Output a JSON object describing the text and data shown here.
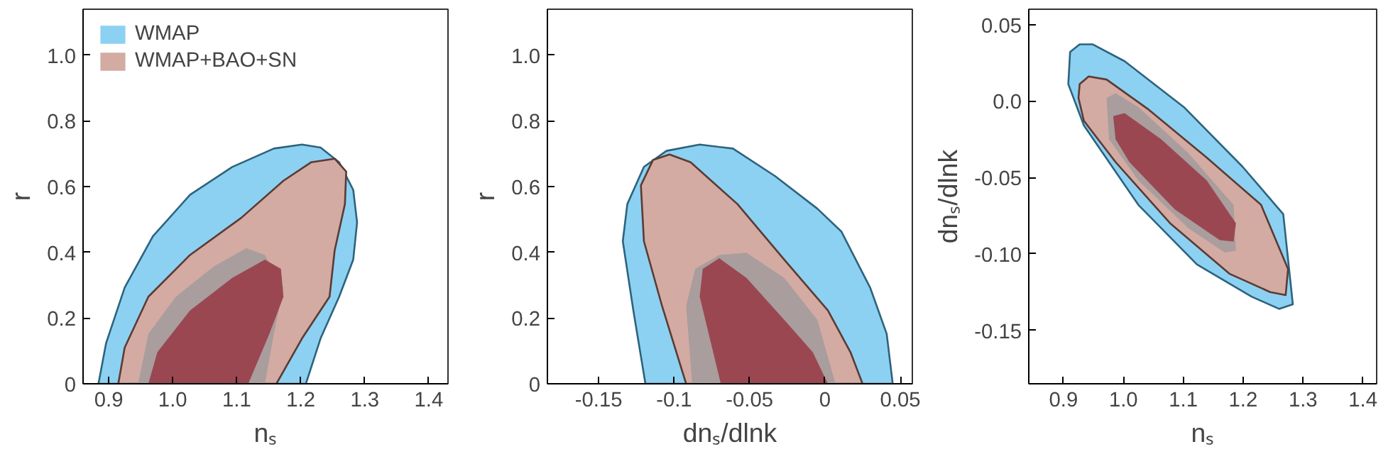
{
  "chart_data": [
    {
      "type": "area",
      "xlabel": "nₛ",
      "ylabel": "r",
      "xlim": [
        0.86,
        1.43
      ],
      "ylim": [
        0,
        1.14
      ],
      "xticks": [
        0.9,
        {
          "value": 1.0,
          "label": "1.0"
        },
        1.1,
        1.2,
        1.3,
        1.4
      ],
      "yticks": [
        0,
        0.2,
        0.4,
        0.6,
        0.8,
        {
          "value": 1.0,
          "label": "1.0"
        }
      ],
      "legend": "top left",
      "grid": false,
      "series": [
        {
          "name": "WMAP",
          "color": "#8dd1f2",
          "line_style": "solid",
          "x": [
            0.884,
            0.896,
            0.925,
            0.969,
            1.027,
            1.093,
            1.158,
            1.202,
            1.231,
            1.26,
            1.282,
            1.288,
            1.282,
            1.26,
            1.231,
            1.208
          ],
          "values": [
            0,
            0.124,
            0.293,
            0.449,
            0.575,
            0.66,
            0.716,
            0.728,
            0.719,
            0.674,
            0.59,
            0.491,
            0.378,
            0.265,
            0.138,
            0
          ]
        },
        {
          "name": "WMAP+BAO+SN",
          "color": "#d3aba2",
          "line_style": "solid",
          "x": [
            0.915,
            0.925,
            0.962,
            1.027,
            1.107,
            1.173,
            1.216,
            1.253,
            1.271,
            1.269,
            1.253,
            1.245,
            1.202,
            1.162
          ],
          "values": [
            0,
            0.11,
            0.265,
            0.392,
            0.505,
            0.618,
            0.674,
            0.685,
            0.646,
            0.547,
            0.406,
            0.265,
            0.138,
            0
          ]
        },
        {
          "color": "#a99d9d",
          "x": [
            0.946,
            0.962,
            1.005,
            1.064,
            1.115,
            1.144,
            1.173,
            1.158,
            1.144
          ],
          "values": [
            0,
            0.152,
            0.265,
            0.357,
            0.413,
            0.392,
            0.293,
            0.152,
            0
          ]
        },
        {
          "color": "#9a4752",
          "x": [
            0.962,
            0.976,
            1.027,
            1.093,
            1.144,
            1.169,
            1.173,
            1.151,
            1.118
          ],
          "values": [
            0,
            0.096,
            0.223,
            0.322,
            0.378,
            0.35,
            0.265,
            0.152,
            0
          ]
        }
      ]
    },
    {
      "type": "area",
      "xlabel": "dnₛ/dlnk",
      "ylabel": "r",
      "xlim": [
        -0.184,
        0.058
      ],
      "ylim": [
        0,
        1.14
      ],
      "xticks": [
        -0.15,
        -0.1,
        -0.05,
        0,
        0.05
      ],
      "yticks": [
        0,
        0.2,
        0.4,
        0.6,
        0.8,
        {
          "value": 1.0,
          "label": "1.0"
        }
      ],
      "grid": false,
      "series": [
        {
          "color": "#8dd1f2",
          "line_style": "solid",
          "x": [
            -0.119,
            -0.127,
            -0.134,
            -0.131,
            -0.12,
            -0.105,
            -0.083,
            -0.061,
            -0.033,
            -0.005,
            0.011,
            0.03,
            0.041,
            0.045
          ],
          "values": [
            0,
            0.223,
            0.434,
            0.547,
            0.66,
            0.709,
            0.728,
            0.716,
            0.632,
            0.533,
            0.463,
            0.293,
            0.152,
            0
          ]
        },
        {
          "color": "#d3aba2",
          "line_style": "solid",
          "x": [
            -0.092,
            -0.108,
            -0.12,
            -0.122,
            -0.114,
            -0.103,
            -0.089,
            -0.058,
            -0.027,
            0.002,
            0.017,
            0.025
          ],
          "values": [
            0,
            0.237,
            0.434,
            0.604,
            0.681,
            0.698,
            0.674,
            0.547,
            0.378,
            0.223,
            0.096,
            0
          ]
        },
        {
          "color": "#a99d9d",
          "x": [
            -0.088,
            -0.092,
            -0.086,
            -0.07,
            -0.052,
            -0.027,
            -0.005,
            0.007
          ],
          "values": [
            0,
            0.237,
            0.35,
            0.392,
            0.399,
            0.322,
            0.195,
            0
          ]
        },
        {
          "color": "#9a4752",
          "x": [
            -0.069,
            -0.083,
            -0.081,
            -0.07,
            -0.052,
            -0.027,
            -0.008,
            0.002
          ],
          "values": [
            0,
            0.265,
            0.35,
            0.382,
            0.322,
            0.195,
            0.096,
            0
          ]
        }
      ]
    },
    {
      "type": "area",
      "xlabel": "nₛ",
      "ylabel": "dnₛ/dlnk",
      "xlim": [
        0.842,
        1.423
      ],
      "ylim": [
        -0.185,
        0.06
      ],
      "xticks": [
        0.9,
        {
          "value": 1.0,
          "label": "1.0"
        },
        1.1,
        1.2,
        1.3,
        1.4
      ],
      "yticks": [
        0.05,
        {
          "value": 0,
          "label": "0.0"
        },
        -0.05,
        {
          "value": -0.1,
          "label": "-0.10"
        },
        -0.15
      ],
      "grid": false,
      "series": [
        {
          "color": "#8dd1f2",
          "line_style": "solid",
          "x": [
            0.911,
            0.927,
            0.949,
            1.002,
            1.101,
            1.199,
            1.267,
            1.283,
            1.26,
            1.214,
            1.123,
            1.025,
            0.934,
            0.908
          ],
          "values": [
            0.032,
            0.037,
            0.037,
            0.026,
            -0.004,
            -0.043,
            -0.074,
            -0.133,
            -0.136,
            -0.128,
            -0.107,
            -0.068,
            -0.016,
            0.011
          ]
        },
        {
          "color": "#d3aba2",
          "line_style": "solid",
          "x": [
            0.927,
            0.942,
            0.972,
            1.04,
            1.139,
            1.23,
            1.275,
            1.271,
            1.245,
            1.177,
            1.078,
            0.987,
            0.934,
            0.925
          ],
          "values": [
            0.011,
            0.016,
            0.014,
            -0.005,
            -0.037,
            -0.068,
            -0.11,
            -0.127,
            -0.125,
            -0.113,
            -0.08,
            -0.04,
            -0.013,
            0.002
          ]
        },
        {
          "color": "#a99d9d",
          "x": [
            0.972,
            0.987,
            1.025,
            1.108,
            1.184,
            1.188,
            1.169,
            1.108,
            1.025,
            0.976
          ],
          "values": [
            0.002,
            0.005,
            -0.004,
            -0.034,
            -0.068,
            -0.098,
            -0.099,
            -0.083,
            -0.052,
            -0.025
          ]
        },
        {
          "color": "#9a4752",
          "x": [
            0.983,
            1.002,
            1.063,
            1.139,
            1.188,
            1.184,
            1.161,
            1.086,
            1.01,
            0.987
          ],
          "values": [
            -0.01,
            -0.008,
            -0.025,
            -0.052,
            -0.08,
            -0.092,
            -0.091,
            -0.071,
            -0.04,
            -0.025
          ]
        }
      ]
    }
  ]
}
